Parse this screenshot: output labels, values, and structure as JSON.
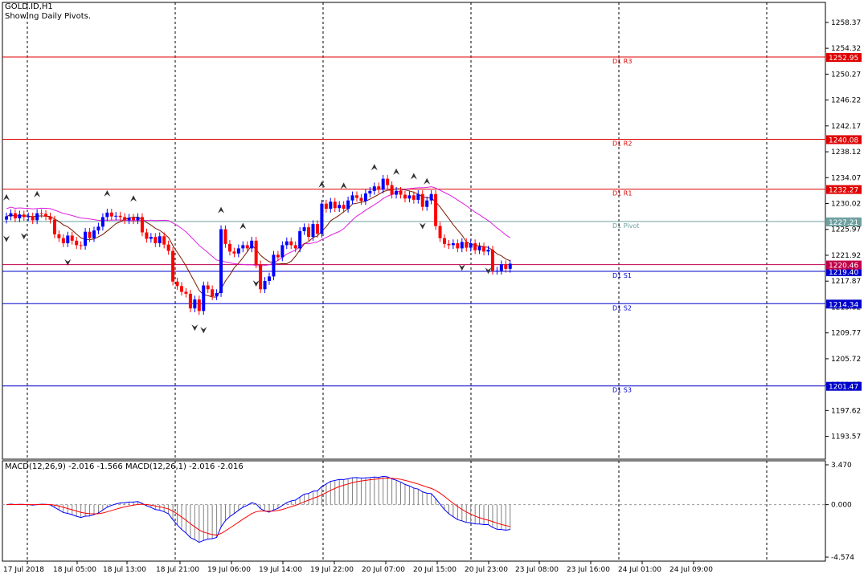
{
  "header": {
    "symbol": "GOLD.ID,H1",
    "subtitle": "Showing Daily Pivots."
  },
  "macd_header": "MACD(12,26,9) -2.016 -1.566 MACD(12,26,1) -2.016 -2.016",
  "colors": {
    "bull": "#0000ff",
    "bear": "#ff0000",
    "pivot_resistance": "#e00000",
    "pivot_support": "#0000cc",
    "pivot_main": "#6fa0a0",
    "ma_fast": "#7a1a00",
    "ma_slow": "#e020e0",
    "bid_line": "#c0004a",
    "macd_line": "#0000ff",
    "signal_line": "#ff0000",
    "histogram": "#808080",
    "grid": "#000000"
  },
  "chart_data": {
    "type": "candlestick",
    "price_axis": {
      "ylim": [
        1190.0,
        1261.5
      ],
      "ticks": [
        "1258.37",
        "1254.32",
        "1250.27",
        "1246.22",
        "1242.17",
        "1238.12",
        "1234.07",
        "1230.02",
        "1225.97",
        "1221.92",
        "1217.87",
        "1213.82",
        "1209.77",
        "1205.72",
        "1201.67",
        "1197.62",
        "1193.57"
      ]
    },
    "time_axis": {
      "labels": [
        "17 Jul 2018",
        "18 Jul 05:00",
        "18 Jul 13:00",
        "18 Jul 21:00",
        "19 Jul 06:00",
        "19 Jul 14:00",
        "19 Jul 22:00",
        "20 Jul 07:00",
        "20 Jul 15:00",
        "20 Jul 23:00",
        "23 Jul 08:00",
        "23 Jul 16:00",
        "24 Jul 01:00",
        "24 Jul 09:00"
      ],
      "bars_per_label": 8
    },
    "pivots": [
      {
        "label": "D1 R3",
        "value": 1252.95,
        "value_label": "1252.95",
        "kind": "resistance"
      },
      {
        "label": "D1 R2",
        "value": 1240.08,
        "value_label": "1240.08",
        "kind": "resistance"
      },
      {
        "label": "D1 R1",
        "value": 1232.27,
        "value_label": "1232.27",
        "kind": "resistance"
      },
      {
        "label": "D1 Pivot",
        "value": 1227.21,
        "value_label": "1227.21",
        "kind": "pivot"
      },
      {
        "label": "D1 S1",
        "value": 1219.4,
        "value_label": "1219.40",
        "kind": "support"
      },
      {
        "label": "D1 S2",
        "value": 1214.34,
        "value_label": "1214.34",
        "kind": "support"
      },
      {
        "label": "D1 S3",
        "value": 1201.47,
        "value_label": "1201.47",
        "kind": "support"
      }
    ],
    "current_price": {
      "value": 1220.46,
      "label": "1220.46"
    },
    "candles_close": [
      1228.0,
      1228.5,
      1227.7,
      1228.3,
      1227.9,
      1228.0,
      1227.4,
      1228.5,
      1228.4,
      1228.0,
      1227.5,
      1225.2,
      1224.6,
      1223.8,
      1225.0,
      1224.2,
      1223.5,
      1223.4,
      1225.6,
      1224.6,
      1225.8,
      1226.4,
      1227.9,
      1228.6,
      1228.0,
      1228.1,
      1227.9,
      1227.4,
      1227.8,
      1227.4,
      1227.9,
      1225.5,
      1224.5,
      1224.8,
      1223.8,
      1224.9,
      1223.6,
      1222.6,
      1217.8,
      1217.1,
      1216.2,
      1215.9,
      1213.6,
      1215.0,
      1213.2,
      1217.2,
      1216.6,
      1215.5,
      1216.0,
      1226.0,
      1223.7,
      1222.5,
      1222.2,
      1223.0,
      1223.5,
      1223.0,
      1224.2,
      1220.5,
      1216.6,
      1217.9,
      1218.6,
      1222.0,
      1221.6,
      1223.5,
      1224.1,
      1223.5,
      1223.0,
      1225.7,
      1226.3,
      1224.8,
      1226.8,
      1225.3,
      1230.0,
      1229.2,
      1230.3,
      1229.3,
      1229.8,
      1229.2,
      1230.5,
      1231.3,
      1230.9,
      1230.4,
      1231.6,
      1232.0,
      1232.7,
      1232.2,
      1233.9,
      1232.9,
      1231.4,
      1232.0,
      1231.4,
      1230.8,
      1231.3,
      1230.6,
      1231.5,
      1229.5,
      1230.5,
      1231.5,
      1226.5,
      1224.6,
      1223.7,
      1223.5,
      1223.8,
      1223.0,
      1224.0,
      1223.1,
      1223.8,
      1222.7,
      1223.3,
      1222.5,
      1222.8,
      1219.5,
      1219.5,
      1220.5,
      1219.8,
      1220.6
    ],
    "candles_open": [
      1227.5,
      1228.0,
      1228.5,
      1227.7,
      1228.3,
      1227.9,
      1228.0,
      1227.4,
      1228.5,
      1228.4,
      1228.0,
      1227.5,
      1225.2,
      1224.6,
      1223.8,
      1225.0,
      1224.2,
      1223.5,
      1223.4,
      1225.6,
      1224.6,
      1225.8,
      1226.4,
      1227.9,
      1228.6,
      1228.0,
      1228.1,
      1227.9,
      1227.4,
      1227.8,
      1227.4,
      1227.9,
      1225.5,
      1224.5,
      1224.8,
      1223.8,
      1224.9,
      1223.6,
      1222.6,
      1217.8,
      1217.1,
      1216.2,
      1215.9,
      1213.6,
      1215.0,
      1213.2,
      1217.2,
      1216.6,
      1215.5,
      1216.0,
      1226.0,
      1223.7,
      1222.5,
      1222.2,
      1223.0,
      1223.5,
      1223.0,
      1224.2,
      1220.5,
      1216.6,
      1217.9,
      1218.6,
      1222.0,
      1221.6,
      1223.5,
      1224.1,
      1223.5,
      1223.0,
      1225.7,
      1226.3,
      1224.8,
      1226.8,
      1225.3,
      1230.0,
      1229.2,
      1230.3,
      1229.3,
      1229.8,
      1229.2,
      1230.5,
      1231.3,
      1230.9,
      1230.4,
      1231.6,
      1232.0,
      1232.7,
      1232.2,
      1233.9,
      1232.9,
      1231.4,
      1232.0,
      1231.4,
      1230.8,
      1231.3,
      1230.6,
      1231.5,
      1229.5,
      1230.5,
      1231.5,
      1226.5,
      1224.6,
      1223.7,
      1223.5,
      1223.8,
      1223.0,
      1224.0,
      1223.1,
      1223.8,
      1222.7,
      1223.3,
      1222.5,
      1222.8,
      1219.5,
      1219.5,
      1220.5,
      1219.8
    ],
    "fractals_up": [
      0,
      7,
      23,
      29,
      49,
      54,
      72,
      77,
      84,
      89,
      93,
      96
    ],
    "fractals_down": [
      0,
      4,
      14,
      43,
      45,
      57,
      95,
      104,
      110
    ],
    "macd_axis": {
      "ylim": [
        -4.574,
        3.47
      ],
      "ticks": [
        "3.470",
        "0.000",
        "-4.574"
      ]
    }
  }
}
